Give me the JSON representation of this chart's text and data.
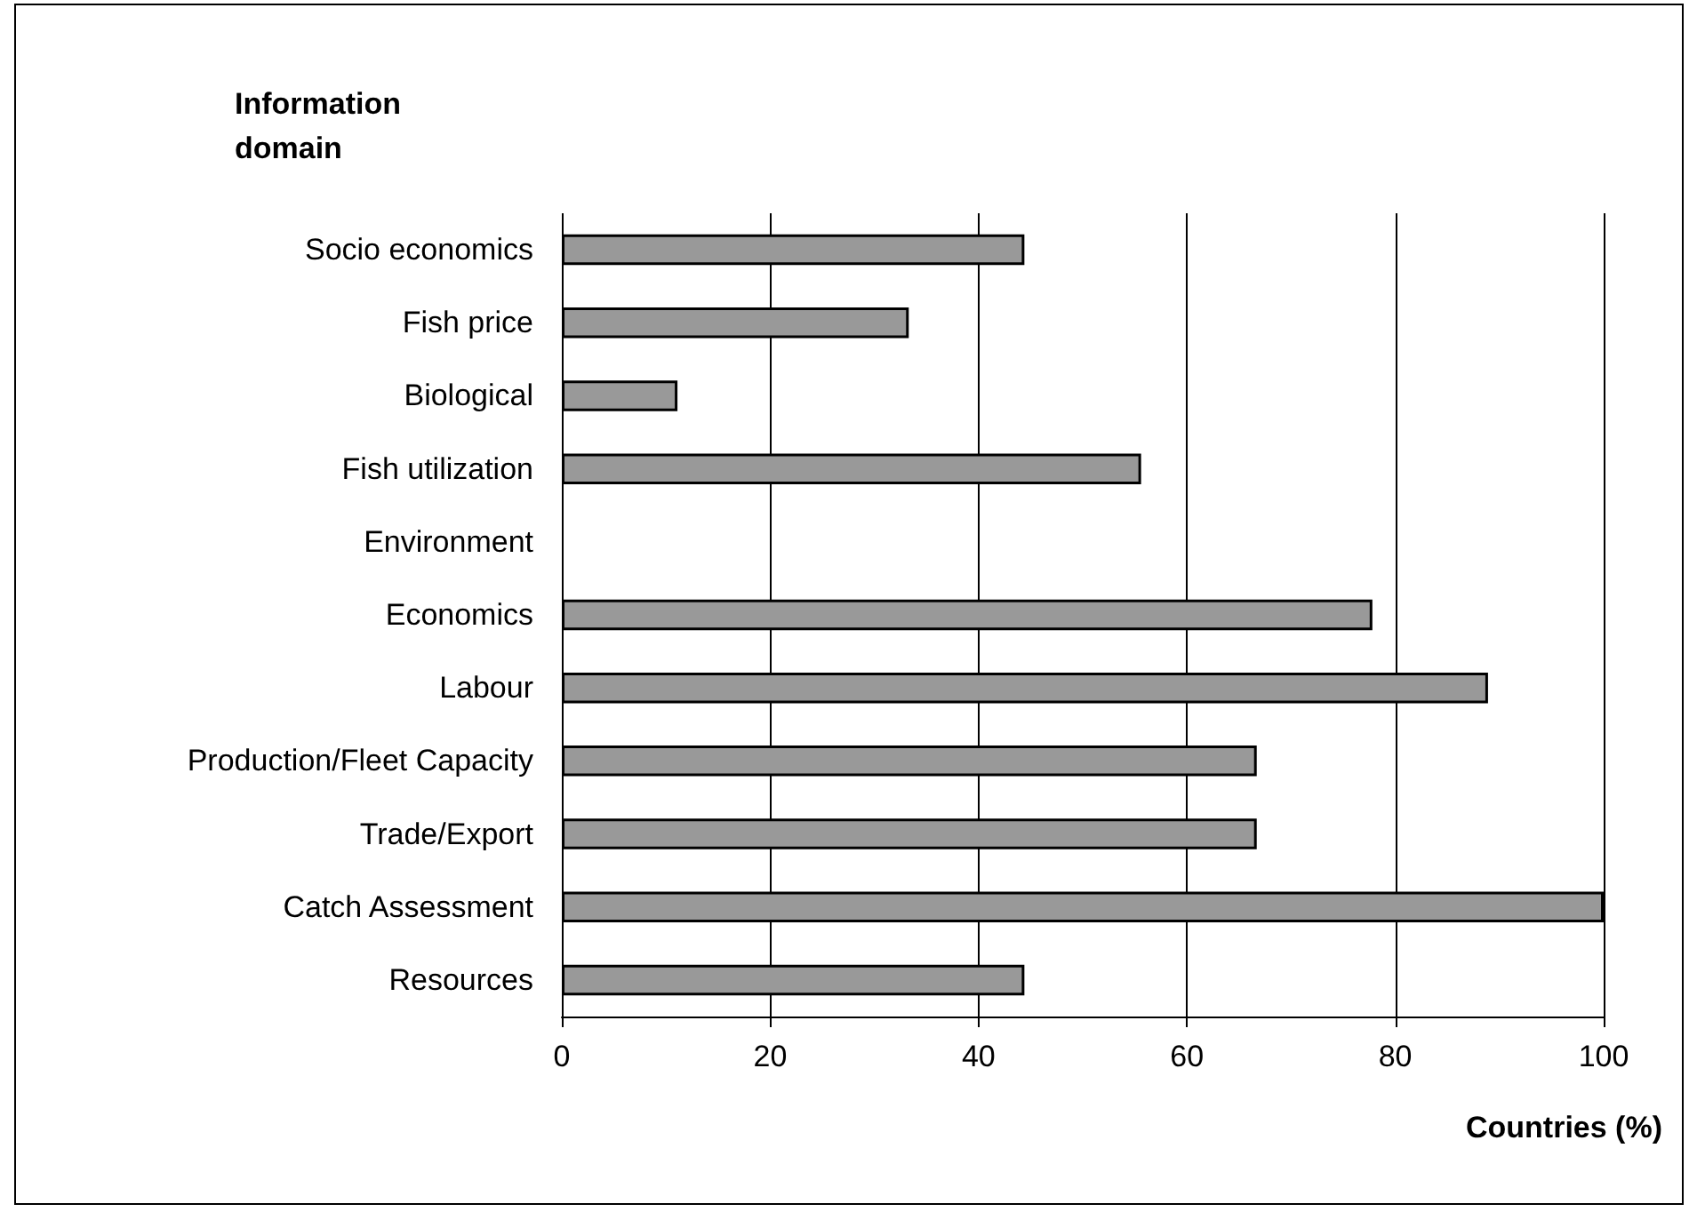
{
  "chart_data": {
    "type": "bar",
    "orientation": "horizontal",
    "ylabel": "Information domain",
    "xlabel": "Countries (%)",
    "categories": [
      "Socio economics",
      "Fish price",
      "Biological",
      "Fish utilization",
      "Environment",
      "Economics",
      "Labour",
      "Production/Fleet Capacity",
      "Trade/Export",
      "Catch Assessment",
      "Resources"
    ],
    "values": [
      44.4,
      33.3,
      11.1,
      55.6,
      0,
      77.8,
      88.9,
      66.7,
      66.7,
      100,
      44.4
    ],
    "color": "#999999",
    "xlim": [
      0,
      100
    ],
    "xticks": [
      0,
      20,
      40,
      60,
      80,
      100
    ],
    "grid": "x"
  }
}
